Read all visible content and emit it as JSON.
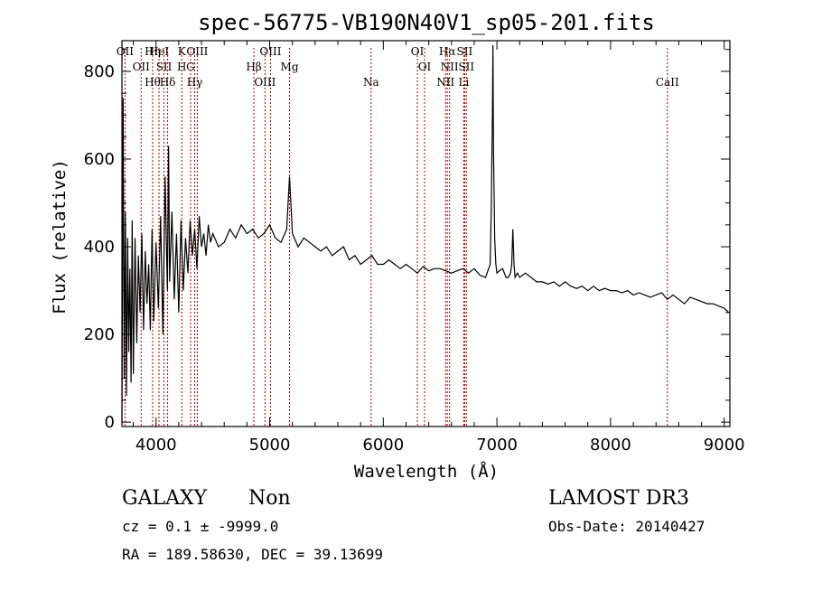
{
  "chart_data": {
    "type": "line",
    "title": "spec-56775-VB190N40V1_sp05-201.fits",
    "xlabel": "Wavelength (Å)",
    "ylabel": "Flux (relative)",
    "xlim": [
      3700,
      9050
    ],
    "ylim": [
      -10,
      870
    ],
    "xticks": [
      4000,
      5000,
      6000,
      7000,
      8000,
      9000
    ],
    "yticks": [
      0,
      200,
      400,
      600,
      800
    ],
    "series": [
      {
        "name": "spectrum",
        "x": [
          3700,
          3710,
          3720,
          3730,
          3740,
          3750,
          3760,
          3770,
          3780,
          3790,
          3800,
          3815,
          3830,
          3845,
          3860,
          3875,
          3890,
          3905,
          3920,
          3935,
          3950,
          3965,
          3980,
          4000,
          4020,
          4040,
          4060,
          4080,
          4100,
          4110,
          4120,
          4140,
          4160,
          4180,
          4200,
          4220,
          4240,
          4260,
          4280,
          4300,
          4320,
          4340,
          4360,
          4380,
          4400,
          4420,
          4440,
          4460,
          4480,
          4500,
          4550,
          4600,
          4650,
          4700,
          4750,
          4800,
          4850,
          4900,
          4950,
          5000,
          5050,
          5100,
          5150,
          5175,
          5200,
          5250,
          5300,
          5350,
          5400,
          5450,
          5500,
          5550,
          5600,
          5650,
          5700,
          5750,
          5800,
          5850,
          5900,
          5950,
          6000,
          6050,
          6100,
          6150,
          6200,
          6250,
          6300,
          6350,
          6400,
          6450,
          6500,
          6550,
          6600,
          6650,
          6700,
          6750,
          6800,
          6850,
          6900,
          6940,
          6950,
          6960,
          6965,
          6970,
          6975,
          6980,
          6990,
          7000,
          7020,
          7050,
          7080,
          7100,
          7120,
          7130,
          7140,
          7150,
          7160,
          7180,
          7200,
          7250,
          7300,
          7350,
          7400,
          7450,
          7500,
          7550,
          7600,
          7650,
          7700,
          7750,
          7800,
          7850,
          7900,
          7950,
          8000,
          8050,
          8100,
          8150,
          8200,
          8250,
          8300,
          8350,
          8400,
          8450,
          8500,
          8550,
          8600,
          8650,
          8700,
          8750,
          8800,
          8850,
          8900,
          8950,
          9000,
          9020,
          9040
        ],
        "y": [
          0,
          740,
          100,
          480,
          60,
          420,
          160,
          350,
          90,
          460,
          110,
          420,
          180,
          380,
          250,
          430,
          210,
          390,
          270,
          360,
          210,
          440,
          230,
          410,
          260,
          470,
          200,
          560,
          300,
          630,
          320,
          480,
          280,
          430,
          250,
          460,
          300,
          420,
          340,
          460,
          380,
          440,
          350,
          470,
          400,
          430,
          380,
          450,
          410,
          430,
          400,
          410,
          440,
          420,
          450,
          430,
          440,
          420,
          430,
          450,
          420,
          410,
          440,
          560,
          430,
          400,
          420,
          410,
          400,
          390,
          400,
          380,
          390,
          400,
          370,
          380,
          360,
          370,
          380,
          360,
          360,
          370,
          360,
          350,
          360,
          350,
          340,
          355,
          345,
          350,
          350,
          345,
          340,
          345,
          350,
          340,
          350,
          335,
          330,
          360,
          480,
          700,
          860,
          620,
          520,
          420,
          360,
          340,
          345,
          350,
          330,
          330,
          340,
          360,
          440,
          360,
          330,
          340,
          330,
          340,
          330,
          320,
          320,
          315,
          320,
          310,
          320,
          310,
          305,
          310,
          300,
          310,
          300,
          305,
          300,
          300,
          295,
          300,
          290,
          295,
          290,
          285,
          290,
          295,
          280,
          290,
          280,
          270,
          285,
          280,
          275,
          270,
          270,
          265,
          260,
          255,
          250
        ]
      }
    ],
    "emission_lines": [
      {
        "wavelength": 3727,
        "labels": [
          "OII"
        ]
      },
      {
        "wavelength": 3869,
        "labels": [
          "OII"
        ]
      },
      {
        "wavelength": 3970,
        "labels": [
          "Hθ",
          "Hη"
        ]
      },
      {
        "wavelength": 4026,
        "labels": [
          "HeI"
        ]
      },
      {
        "wavelength": 4070,
        "labels": [
          "SII"
        ]
      },
      {
        "wavelength": 4102,
        "labels": [
          "Hδ"
        ]
      },
      {
        "wavelength": 4227,
        "labels": [
          "K",
          "H"
        ]
      },
      {
        "wavelength": 4304,
        "labels": [
          "G"
        ]
      },
      {
        "wavelength": 4340,
        "labels": [
          "Hγ"
        ]
      },
      {
        "wavelength": 4363,
        "labels": [
          "OIII"
        ]
      },
      {
        "wavelength": 4861,
        "labels": [
          "Hβ"
        ]
      },
      {
        "wavelength": 4959,
        "labels": [
          "OIII"
        ]
      },
      {
        "wavelength": 5007,
        "labels": [
          "OIII"
        ]
      },
      {
        "wavelength": 5175,
        "labels": [
          "Mg"
        ]
      },
      {
        "wavelength": 5893,
        "labels": [
          "Na"
        ]
      },
      {
        "wavelength": 6300,
        "labels": [
          "OI"
        ]
      },
      {
        "wavelength": 6363,
        "labels": [
          "OI"
        ]
      },
      {
        "wavelength": 6548,
        "labels": [
          "NII"
        ]
      },
      {
        "wavelength": 6563,
        "labels": [
          "Hα"
        ]
      },
      {
        "wavelength": 6583,
        "labels": [
          "NII"
        ]
      },
      {
        "wavelength": 6708,
        "labels": [
          "Li"
        ]
      },
      {
        "wavelength": 6716,
        "labels": [
          "SII"
        ]
      },
      {
        "wavelength": 6731,
        "labels": [
          "SII"
        ]
      },
      {
        "wavelength": 8500,
        "labels": [
          "CaII"
        ]
      }
    ]
  },
  "info": {
    "class": "GALAXY",
    "subclass": "Non",
    "survey": "LAMOST DR3",
    "cz": "cz = 0.1 ± -9999.0",
    "obs_date": "Obs-Date: 20140427",
    "coords": "RA = 189.58630, DEC =  39.13699"
  },
  "colors": {
    "spectrum": "#000000",
    "line_marker": "#aa0000",
    "axes": "#000000"
  }
}
